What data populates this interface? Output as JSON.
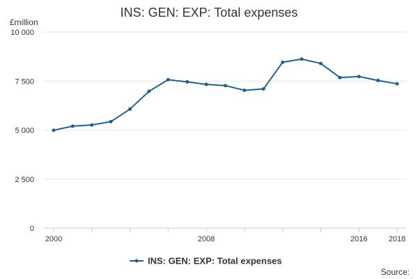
{
  "chart_data": {
    "type": "line",
    "title": "INS: GEN: EXP: Total expenses",
    "ylabel": "£million",
    "xlabel": "",
    "x": [
      2000,
      2001,
      2002,
      2003,
      2004,
      2005,
      2006,
      2007,
      2008,
      2009,
      2010,
      2011,
      2012,
      2013,
      2014,
      2015,
      2016,
      2017,
      2018
    ],
    "series": [
      {
        "name": "INS: GEN: EXP: Total expenses",
        "color": "#206095",
        "values": [
          4990,
          5200,
          5260,
          5430,
          6070,
          6980,
          7570,
          7460,
          7330,
          7270,
          7030,
          7100,
          8460,
          8620,
          8400,
          7680,
          7730,
          7530,
          7360
        ]
      }
    ],
    "ylim": [
      0,
      10000
    ],
    "yticks": [
      0,
      2500,
      5000,
      7500,
      10000
    ],
    "ytick_labels": [
      "0",
      "2 500",
      "5 000",
      "7 500",
      "10 000"
    ],
    "xticks": [
      2000,
      2008,
      2016,
      2018
    ],
    "xtick_labels": [
      "2000",
      "2008",
      "2016",
      "2018"
    ],
    "grid": true,
    "legend_position": "bottom-center",
    "source_label": "Source:"
  }
}
